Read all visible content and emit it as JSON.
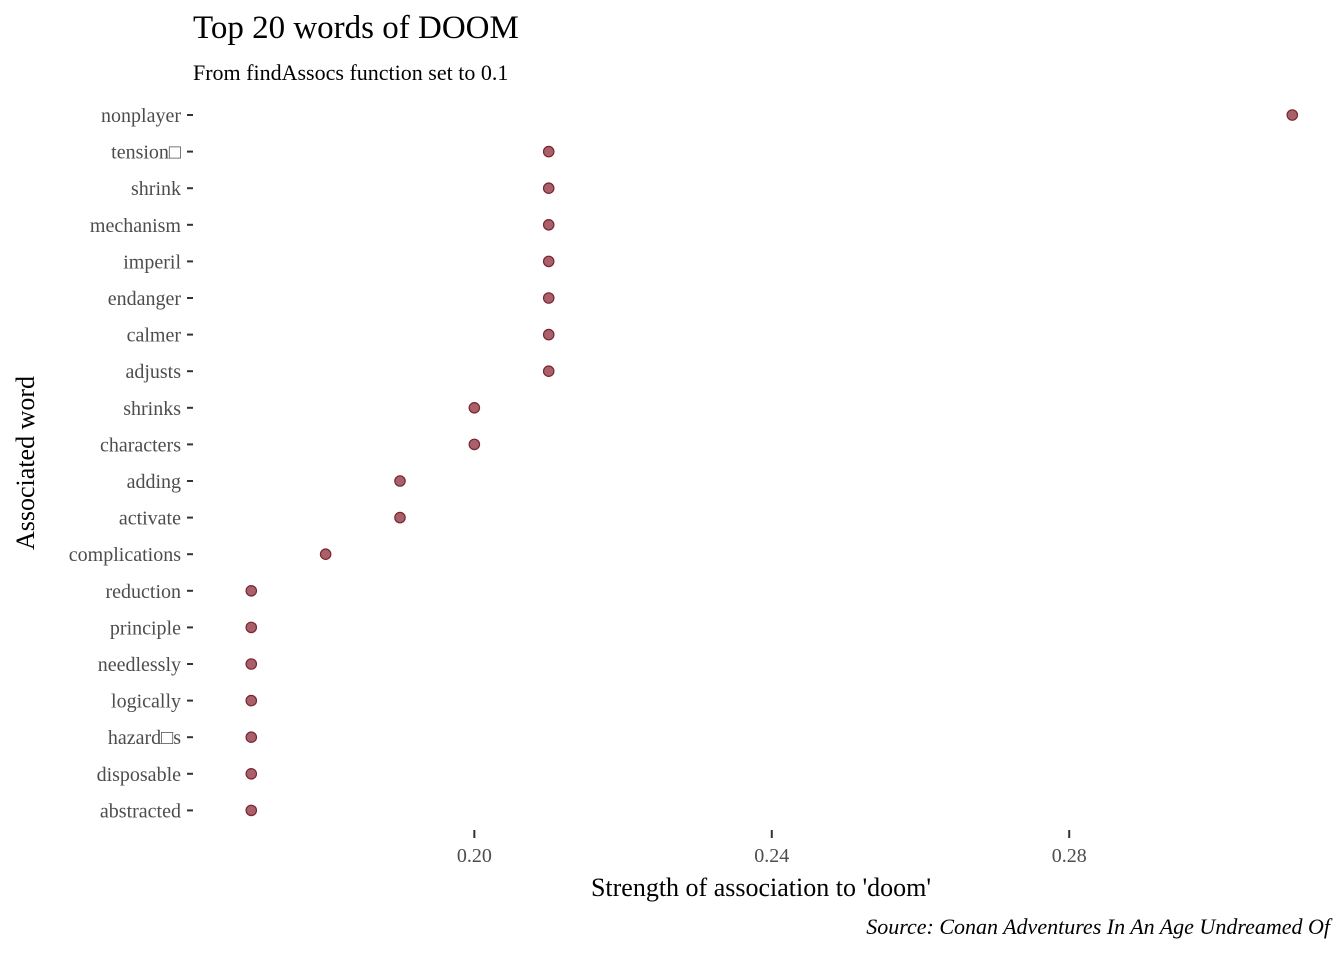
{
  "chart_data": {
    "type": "scatter",
    "title": "Top 20 words of DOOM",
    "subtitle": "From findAssocs function set to 0.1",
    "xlabel": "Strength of association to 'doom'",
    "ylabel": "Associated word",
    "caption": "Source: Conan Adventures In An Age Undreamed Of",
    "xlim": [
      0.1627,
      0.3144
    ],
    "x_ticks": [
      0.2,
      0.24,
      0.28
    ],
    "x_tick_labels": [
      "0.20",
      "0.24",
      "0.28"
    ],
    "grid": false,
    "point_color": "#8b2c38",
    "categories": [
      "nonplayer",
      "tension□",
      "shrink",
      "mechanism",
      "imperil",
      "endanger",
      "calmer",
      "adjusts",
      "shrinks",
      "characters",
      "adding",
      "activate",
      "complications",
      "reduction",
      "principle",
      "needlessly",
      "logically",
      "hazard□s",
      "disposable",
      "abstracted"
    ],
    "values": [
      0.31,
      0.21,
      0.21,
      0.21,
      0.21,
      0.21,
      0.21,
      0.21,
      0.2,
      0.2,
      0.19,
      0.19,
      0.18,
      0.17,
      0.17,
      0.17,
      0.17,
      0.17,
      0.17,
      0.17
    ]
  }
}
